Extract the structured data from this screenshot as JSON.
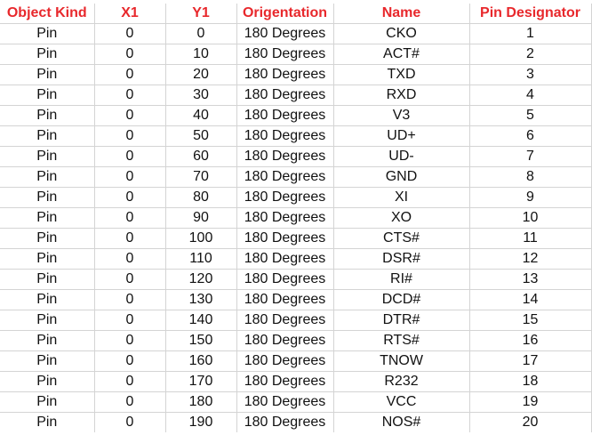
{
  "sheet": {
    "header_color": "#e8282c",
    "columns": [
      "Object Kind",
      "X1",
      "Y1",
      "Origentation",
      "Name",
      "Pin Designator"
    ],
    "rows": [
      [
        "Pin",
        "0",
        "0",
        "180 Degrees",
        "CKO",
        "1"
      ],
      [
        "Pin",
        "0",
        "10",
        "180 Degrees",
        "ACT#",
        "2"
      ],
      [
        "Pin",
        "0",
        "20",
        "180 Degrees",
        "TXD",
        "3"
      ],
      [
        "Pin",
        "0",
        "30",
        "180 Degrees",
        "RXD",
        "4"
      ],
      [
        "Pin",
        "0",
        "40",
        "180 Degrees",
        "V3",
        "5"
      ],
      [
        "Pin",
        "0",
        "50",
        "180 Degrees",
        "UD+",
        "6"
      ],
      [
        "Pin",
        "0",
        "60",
        "180 Degrees",
        "UD-",
        "7"
      ],
      [
        "Pin",
        "0",
        "70",
        "180 Degrees",
        "GND",
        "8"
      ],
      [
        "Pin",
        "0",
        "80",
        "180 Degrees",
        "XI",
        "9"
      ],
      [
        "Pin",
        "0",
        "90",
        "180 Degrees",
        "XO",
        "10"
      ],
      [
        "Pin",
        "0",
        "100",
        "180 Degrees",
        "CTS#",
        "11"
      ],
      [
        "Pin",
        "0",
        "110",
        "180 Degrees",
        "DSR#",
        "12"
      ],
      [
        "Pin",
        "0",
        "120",
        "180 Degrees",
        "RI#",
        "13"
      ],
      [
        "Pin",
        "0",
        "130",
        "180 Degrees",
        "DCD#",
        "14"
      ],
      [
        "Pin",
        "0",
        "140",
        "180 Degrees",
        "DTR#",
        "15"
      ],
      [
        "Pin",
        "0",
        "150",
        "180 Degrees",
        "RTS#",
        "16"
      ],
      [
        "Pin",
        "0",
        "160",
        "180 Degrees",
        "TNOW",
        "17"
      ],
      [
        "Pin",
        "0",
        "170",
        "180 Degrees",
        "R232",
        "18"
      ],
      [
        "Pin",
        "0",
        "180",
        "180 Degrees",
        "VCC",
        "19"
      ],
      [
        "Pin",
        "0",
        "190",
        "180 Degrees",
        "NOS#",
        "20"
      ]
    ]
  }
}
